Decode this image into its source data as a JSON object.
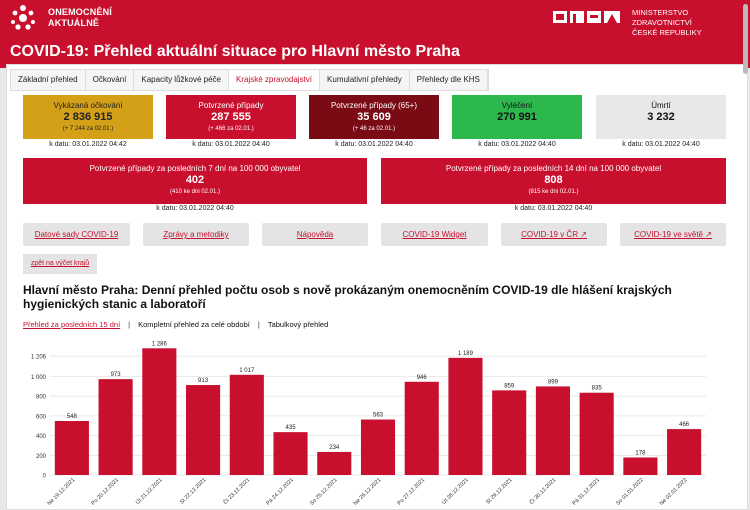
{
  "header": {
    "logo_line1": "ONEMOCNĚNÍ",
    "logo_line2": "AKTUÁLNĚ",
    "ministry_line1": "MINISTERSTVO ZDRAVOTNICTVÍ",
    "ministry_line2": "ČESKÉ REPUBLIKY",
    "brand_color": "#c8102e"
  },
  "page_title": "COVID-19: Přehled aktuální situace pro Hlavní město Praha",
  "tabs": [
    {
      "label": "Základní přehled"
    },
    {
      "label": "Očkování"
    },
    {
      "label": "Kapacity lůžkové péče"
    },
    {
      "label": "Krajské zpravodajství",
      "active": true
    },
    {
      "label": "Kumulativní přehledy"
    },
    {
      "label": "Přehledy dle KHS"
    }
  ],
  "tiles": [
    {
      "label": "Vykázaná očkování",
      "value": "2 836 915",
      "note": "(+ 7 244 za 02.01.)",
      "date": "k datu: 03.01.2022 04:42",
      "color": "#d4a017"
    },
    {
      "label": "Potvrzené případy",
      "value": "287 555",
      "note": "(+ 466 za 02.01.)",
      "date": "k datu: 03.01.2022 04:40",
      "color": "#c8102e"
    },
    {
      "label": "Potvrzené případy (65+)",
      "value": "35 609",
      "note": "(+ 46 za 02.01.)",
      "date": "k datu: 03.01.2022 04:40",
      "color": "#7a0a14"
    },
    {
      "label": "Vyléčení",
      "value": "270 991",
      "note": "",
      "date": "k datu: 03.01.2022 04:40",
      "color": "#2db84d"
    },
    {
      "label": "Úmrtí",
      "value": "3 232",
      "note": "",
      "date": "k datu: 03.01.2022 04:40",
      "color": "#e8e8e8"
    }
  ],
  "wide_tiles": [
    {
      "label": "Potvrzené případy za posledních 7 dní na 100 000 obyvatel",
      "value": "402",
      "note": "(410 ke dni 02.01.)",
      "date": "k datu: 03.01.2022 04:40"
    },
    {
      "label": "Potvrzené případy za posledních 14 dní na 100 000 obyvatel",
      "value": "808",
      "note": "(815 ke dni 02.01.)",
      "date": "k datu: 03.01.2022 04:40"
    }
  ],
  "links": [
    {
      "label": "Datové sady COVID-19"
    },
    {
      "label": "Zprávy a metodiky"
    },
    {
      "label": "Nápověda"
    },
    {
      "label": "COVID-19 Widget"
    },
    {
      "label": "COVID-19 v ČR ↗"
    },
    {
      "label": "COVID-19 ve světě ↗"
    }
  ],
  "back_link": "zpět na výčet krajů",
  "chart_title": "Hlavní město Praha: Denní přehled počtu osob s nově prokázaným onemocněním COVID-19 dle hlášení krajských hygienických stanic a laboratoří",
  "subtabs": [
    {
      "label": "Přehled za posledních 15 dní",
      "active": true
    },
    {
      "label": "Kompletní přehled za celé období"
    },
    {
      "label": "Tabulkový přehled"
    }
  ],
  "chart_data": {
    "type": "bar",
    "categories": [
      "Ne 19.12.2021",
      "Po 20.12.2021",
      "Út 21.12.2021",
      "St 22.12.2021",
      "Čt 23.12.2021",
      "Pá 24.12.2021",
      "So 25.12.2021",
      "Ne 26.12.2021",
      "Po 27.12.2021",
      "Út 28.12.2021",
      "St 29.12.2021",
      "Čt 30.12.2021",
      "Pá 31.12.2021",
      "So 01.01.2022",
      "Ne 02.01.2022"
    ],
    "values": [
      548,
      973,
      1286,
      913,
      1017,
      435,
      234,
      563,
      946,
      1189,
      859,
      899,
      835,
      178,
      466
    ],
    "value_labels": [
      "548",
      "973",
      "1 286",
      "913",
      "1 017",
      "435",
      "234",
      "563",
      "946",
      "1 189",
      "859",
      "899",
      "835",
      "178",
      "466"
    ],
    "yticks": [
      0,
      200,
      400,
      600,
      800,
      1000,
      1206
    ],
    "ytick_labels": [
      "0",
      "200",
      "400",
      "600",
      "800",
      "1 000",
      "1 206"
    ],
    "ylim": [
      0,
      1350
    ],
    "grid": true,
    "bar_color": "#c8102e"
  }
}
